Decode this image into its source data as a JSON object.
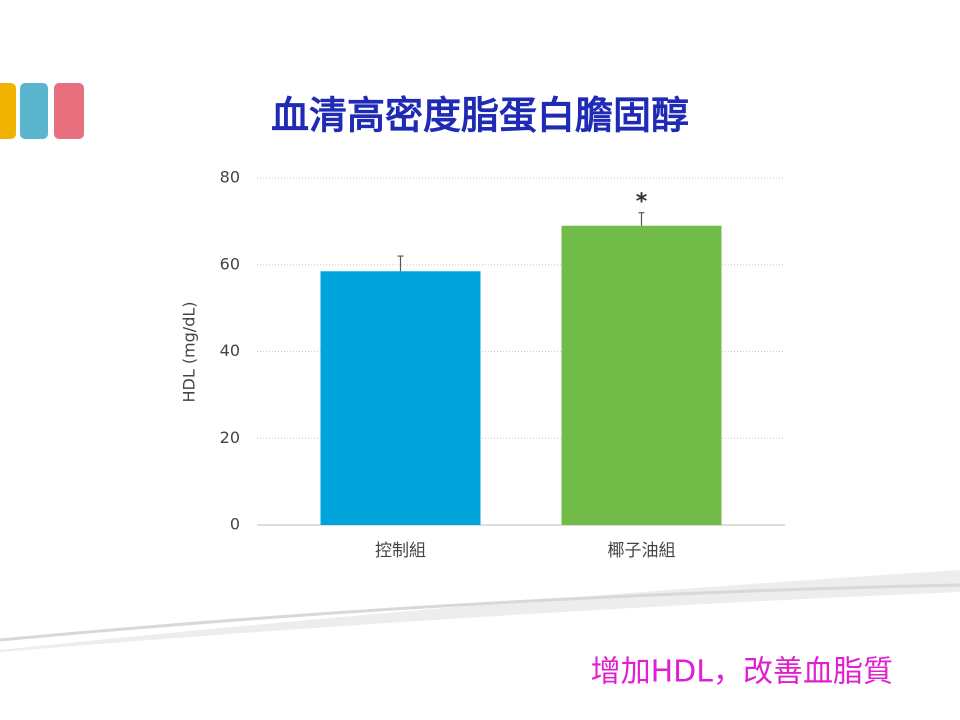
{
  "chart_data": {
    "type": "bar",
    "title": "血清高密度脂蛋白膽固醇",
    "ylabel": "HDL (mg/dL)",
    "categories": [
      "控制組",
      "椰子油組"
    ],
    "values": [
      58.5,
      69
    ],
    "errors": [
      3.5,
      3
    ],
    "colors": [
      "#00a3da",
      "#71bc48"
    ],
    "markers": [
      null,
      "*"
    ],
    "ylim": [
      0,
      80
    ],
    "yticks": [
      0,
      20,
      40,
      60,
      80
    ],
    "grid": true
  },
  "footer": "增加HDL，改善血脂質"
}
